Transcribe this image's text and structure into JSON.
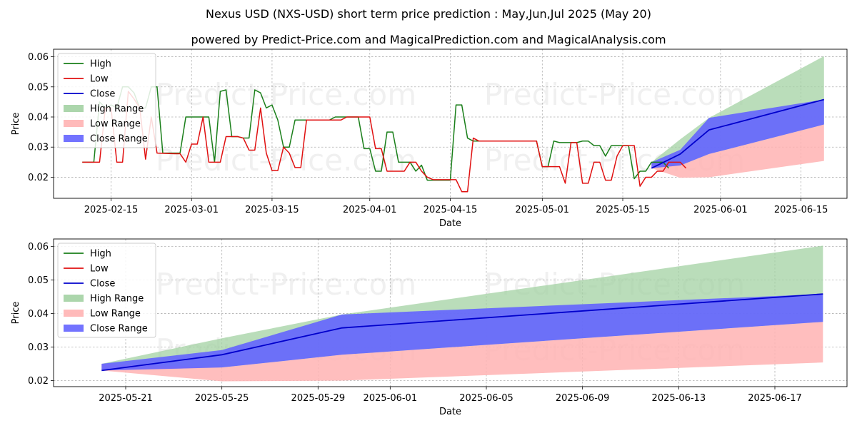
{
  "title": "Nexus USD (NXS-USD) short term price prediction : May,Jun,Jul 2025 (May 20)",
  "subtitle": "powered by Predict-Price.com and MagicalPrediction.com and MagicalAnalysis.com",
  "watermark": "Predict-Price.com",
  "colors": {
    "high": "#1a7f1a",
    "low": "#e01010",
    "close": "#0000cc",
    "high_range": "#a3d1a3",
    "low_range": "#ffb3b3",
    "close_range": "#6464ff"
  },
  "legend": {
    "placement": "upper-left",
    "items": [
      {
        "label": "High",
        "kind": "line",
        "color_key": "high"
      },
      {
        "label": "Low",
        "kind": "line",
        "color_key": "low"
      },
      {
        "label": "Close",
        "kind": "line",
        "color_key": "close"
      },
      {
        "label": "High Range",
        "kind": "patch",
        "color_key": "high_range"
      },
      {
        "label": "Low Range",
        "kind": "patch",
        "color_key": "low_range"
      },
      {
        "label": "Close Range",
        "kind": "patch",
        "color_key": "close_range"
      }
    ]
  },
  "chart_data": [
    {
      "type": "line",
      "xlabel": "Date",
      "ylabel": "Price",
      "xlim": [
        "2025-02-05",
        "2025-06-23"
      ],
      "ylim": [
        0.013,
        0.0625
      ],
      "xticks": [
        "2025-02-15",
        "2025-03-01",
        "2025-03-15",
        "2025-04-01",
        "2025-04-15",
        "2025-05-01",
        "2025-05-15",
        "2025-06-01",
        "2025-06-15"
      ],
      "yticks": [
        0.02,
        0.03,
        0.04,
        0.05,
        0.06
      ],
      "grid": true,
      "history": {
        "high": [
          [
            "2025-02-10",
            0.025
          ],
          [
            "2025-02-12",
            0.025
          ],
          [
            "2025-02-13",
            0.045
          ],
          [
            "2025-02-14",
            0.043
          ],
          [
            "2025-02-15",
            0.044
          ],
          [
            "2025-02-16",
            0.043
          ],
          [
            "2025-02-17",
            0.05
          ],
          [
            "2025-02-18",
            0.05
          ],
          [
            "2025-02-19",
            0.048
          ],
          [
            "2025-02-20",
            0.043
          ],
          [
            "2025-02-21",
            0.043
          ],
          [
            "2025-02-22",
            0.05
          ],
          [
            "2025-02-23",
            0.05
          ],
          [
            "2025-02-24",
            0.028
          ],
          [
            "2025-02-25",
            0.028
          ],
          [
            "2025-02-26",
            0.028
          ],
          [
            "2025-02-27",
            0.028
          ],
          [
            "2025-02-28",
            0.04
          ],
          [
            "2025-03-03",
            0.04
          ],
          [
            "2025-03-04",
            0.04
          ],
          [
            "2025-03-05",
            0.025
          ],
          [
            "2025-03-06",
            0.0485
          ],
          [
            "2025-03-07",
            0.049
          ],
          [
            "2025-03-08",
            0.0335
          ],
          [
            "2025-03-09",
            0.0335
          ],
          [
            "2025-03-10",
            0.033
          ],
          [
            "2025-03-11",
            0.033
          ],
          [
            "2025-03-12",
            0.049
          ],
          [
            "2025-03-13",
            0.048
          ],
          [
            "2025-03-14",
            0.043
          ],
          [
            "2025-03-15",
            0.044
          ],
          [
            "2025-03-16",
            0.039
          ],
          [
            "2025-03-17",
            0.03
          ],
          [
            "2025-03-18",
            0.03
          ],
          [
            "2025-03-19",
            0.039
          ],
          [
            "2025-03-20",
            0.039
          ],
          [
            "2025-03-25",
            0.039
          ],
          [
            "2025-03-26",
            0.04
          ],
          [
            "2025-03-30",
            0.04
          ],
          [
            "2025-03-31",
            0.0295
          ],
          [
            "2025-04-01",
            0.0295
          ],
          [
            "2025-04-02",
            0.022
          ],
          [
            "2025-04-03",
            0.022
          ],
          [
            "2025-04-04",
            0.035
          ],
          [
            "2025-04-05",
            0.035
          ],
          [
            "2025-04-06",
            0.025
          ],
          [
            "2025-04-07",
            0.025
          ],
          [
            "2025-04-08",
            0.025
          ],
          [
            "2025-04-09",
            0.022
          ],
          [
            "2025-04-10",
            0.024
          ],
          [
            "2025-04-11",
            0.019
          ],
          [
            "2025-04-15",
            0.019
          ],
          [
            "2025-04-16",
            0.044
          ],
          [
            "2025-04-17",
            0.044
          ],
          [
            "2025-04-18",
            0.033
          ],
          [
            "2025-04-19",
            0.032
          ],
          [
            "2025-04-30",
            0.032
          ],
          [
            "2025-05-01",
            0.0235
          ],
          [
            "2025-05-02",
            0.0235
          ],
          [
            "2025-05-03",
            0.032
          ],
          [
            "2025-05-04",
            0.0315
          ],
          [
            "2025-05-07",
            0.0315
          ],
          [
            "2025-05-08",
            0.032
          ],
          [
            "2025-05-09",
            0.032
          ],
          [
            "2025-05-10",
            0.0305
          ],
          [
            "2025-05-11",
            0.0305
          ],
          [
            "2025-05-12",
            0.027
          ],
          [
            "2025-05-13",
            0.0305
          ],
          [
            "2025-05-16",
            0.0305
          ],
          [
            "2025-05-17",
            0.0195
          ],
          [
            "2025-05-18",
            0.022
          ],
          [
            "2025-05-19",
            0.022
          ],
          [
            "2025-05-20",
            0.025
          ],
          [
            "2025-05-21",
            0.025
          ],
          [
            "2025-05-22",
            0.025
          ],
          [
            "2025-05-23",
            0.023
          ]
        ],
        "low": [
          [
            "2025-02-10",
            0.025
          ],
          [
            "2025-02-12",
            0.025
          ],
          [
            "2025-02-13",
            0.025
          ],
          [
            "2025-02-14",
            0.043
          ],
          [
            "2025-02-15",
            0.043
          ],
          [
            "2025-02-16",
            0.025
          ],
          [
            "2025-02-17",
            0.025
          ],
          [
            "2025-02-18",
            0.0485
          ],
          [
            "2025-02-19",
            0.046
          ],
          [
            "2025-02-20",
            0.043
          ],
          [
            "2025-02-21",
            0.026
          ],
          [
            "2025-02-22",
            0.04
          ],
          [
            "2025-02-23",
            0.028
          ],
          [
            "2025-02-26",
            0.0278
          ],
          [
            "2025-02-27",
            0.0278
          ],
          [
            "2025-02-28",
            0.025
          ],
          [
            "2025-03-01",
            0.031
          ],
          [
            "2025-03-02",
            0.031
          ],
          [
            "2025-03-03",
            0.04
          ],
          [
            "2025-03-04",
            0.025
          ],
          [
            "2025-03-06",
            0.025
          ],
          [
            "2025-03-07",
            0.0335
          ],
          [
            "2025-03-09",
            0.0335
          ],
          [
            "2025-03-10",
            0.033
          ],
          [
            "2025-03-11",
            0.029
          ],
          [
            "2025-03-12",
            0.029
          ],
          [
            "2025-03-13",
            0.043
          ],
          [
            "2025-03-14",
            0.028
          ],
          [
            "2025-03-15",
            0.0222
          ],
          [
            "2025-03-16",
            0.0222
          ],
          [
            "2025-03-17",
            0.03
          ],
          [
            "2025-03-18",
            0.028
          ],
          [
            "2025-03-19",
            0.0232
          ],
          [
            "2025-03-20",
            0.0232
          ],
          [
            "2025-03-21",
            0.039
          ],
          [
            "2025-03-27",
            0.039
          ],
          [
            "2025-03-28",
            0.04
          ],
          [
            "2025-04-01",
            0.04
          ],
          [
            "2025-04-02",
            0.0295
          ],
          [
            "2025-04-03",
            0.0295
          ],
          [
            "2025-04-04",
            0.022
          ],
          [
            "2025-04-07",
            0.022
          ],
          [
            "2025-04-08",
            0.025
          ],
          [
            "2025-04-09",
            0.025
          ],
          [
            "2025-04-10",
            0.022
          ],
          [
            "2025-04-11",
            0.02
          ],
          [
            "2025-04-12",
            0.0192
          ],
          [
            "2025-04-16",
            0.0192
          ],
          [
            "2025-04-17",
            0.0152
          ],
          [
            "2025-04-18",
            0.0152
          ],
          [
            "2025-04-19",
            0.033
          ],
          [
            "2025-04-20",
            0.032
          ],
          [
            "2025-04-30",
            0.032
          ],
          [
            "2025-05-01",
            0.0235
          ],
          [
            "2025-05-04",
            0.0235
          ],
          [
            "2025-05-05",
            0.018
          ],
          [
            "2025-05-06",
            0.0315
          ],
          [
            "2025-05-07",
            0.0315
          ],
          [
            "2025-05-08",
            0.018
          ],
          [
            "2025-05-09",
            0.018
          ],
          [
            "2025-05-10",
            0.025
          ],
          [
            "2025-05-11",
            0.025
          ],
          [
            "2025-05-12",
            0.019
          ],
          [
            "2025-05-13",
            0.019
          ],
          [
            "2025-05-14",
            0.027
          ],
          [
            "2025-05-15",
            0.0305
          ],
          [
            "2025-05-17",
            0.0305
          ],
          [
            "2025-05-18",
            0.017
          ],
          [
            "2025-05-19",
            0.02
          ],
          [
            "2025-05-20",
            0.02
          ],
          [
            "2025-05-21",
            0.022
          ],
          [
            "2025-05-22",
            0.022
          ],
          [
            "2025-05-23",
            0.025
          ],
          [
            "2025-05-25",
            0.025
          ],
          [
            "2025-05-26",
            0.023
          ]
        ]
      },
      "forecast": {
        "dates": [
          "2025-05-20",
          "2025-05-25",
          "2025-05-30",
          "2025-06-19"
        ],
        "close": [
          0.023,
          0.0277,
          0.0357,
          0.0458
        ],
        "high_range": {
          "low": [
            0.023,
            0.0239,
            0.0277,
            0.0375
          ],
          "high": [
            0.025,
            0.0326,
            0.0397,
            0.0602
          ]
        },
        "low_range": {
          "low": [
            0.023,
            0.0198,
            0.02,
            0.0254
          ],
          "high": [
            0.025,
            0.0239,
            0.0277,
            0.0375
          ]
        },
        "close_range": {
          "low": [
            0.023,
            0.0239,
            0.0277,
            0.0375
          ],
          "high": [
            0.025,
            0.0291,
            0.0397,
            0.0458
          ]
        }
      }
    },
    {
      "type": "line",
      "xlabel": "Date",
      "ylabel": "Price",
      "xlim": [
        "2025-05-18",
        "2025-06-20"
      ],
      "ylim": [
        0.0182,
        0.0622
      ],
      "xticks": [
        "2025-05-21",
        "2025-05-25",
        "2025-05-29",
        "2025-06-01",
        "2025-06-05",
        "2025-06-09",
        "2025-06-13",
        "2025-06-17"
      ],
      "yticks": [
        0.02,
        0.03,
        0.04,
        0.05,
        0.06
      ],
      "grid": true,
      "forecast": {
        "dates": [
          "2025-05-20",
          "2025-05-25",
          "2025-05-30",
          "2025-06-19"
        ],
        "close": [
          0.023,
          0.0277,
          0.0357,
          0.0458
        ],
        "high_range": {
          "low": [
            0.023,
            0.0239,
            0.0277,
            0.0375
          ],
          "high": [
            0.025,
            0.0326,
            0.0397,
            0.0602
          ]
        },
        "low_range": {
          "low": [
            0.023,
            0.0198,
            0.02,
            0.0254
          ],
          "high": [
            0.025,
            0.0239,
            0.0277,
            0.0375
          ]
        },
        "close_range": {
          "low": [
            0.023,
            0.0239,
            0.0277,
            0.0375
          ],
          "high": [
            0.025,
            0.0291,
            0.0397,
            0.0458
          ]
        }
      }
    }
  ]
}
